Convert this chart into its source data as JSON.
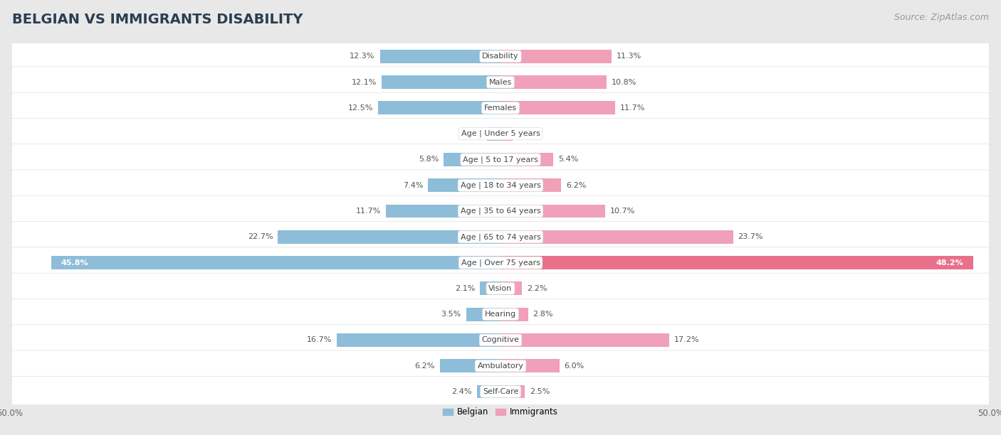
{
  "title": "BELGIAN VS IMMIGRANTS DISABILITY",
  "source": "Source: ZipAtlas.com",
  "categories": [
    "Disability",
    "Males",
    "Females",
    "Age | Under 5 years",
    "Age | 5 to 17 years",
    "Age | 18 to 34 years",
    "Age | 35 to 64 years",
    "Age | 65 to 74 years",
    "Age | Over 75 years",
    "Vision",
    "Hearing",
    "Cognitive",
    "Ambulatory",
    "Self-Care"
  ],
  "belgian": [
    12.3,
    12.1,
    12.5,
    1.4,
    5.8,
    7.4,
    11.7,
    22.7,
    45.8,
    2.1,
    3.5,
    16.7,
    6.2,
    2.4
  ],
  "immigrants": [
    11.3,
    10.8,
    11.7,
    1.2,
    5.4,
    6.2,
    10.7,
    23.7,
    48.2,
    2.2,
    2.8,
    17.2,
    6.0,
    2.5
  ],
  "belgian_color": "#8DBDD8",
  "immigrants_color": "#F0A0B8",
  "immigrants_color_large": "#E8708A",
  "axis_limit": 50.0,
  "bg_color": "#e8e8e8",
  "row_bg_color": "#f0f0f0",
  "row_bg_color_alt": "#e0e0e0",
  "legend_belgian": "Belgian",
  "legend_immigrants": "Immigrants",
  "title_fontsize": 14,
  "source_fontsize": 9,
  "label_fontsize": 8,
  "category_fontsize": 8,
  "tick_fontsize": 8.5,
  "bar_height": 0.52,
  "row_padding": 0.12
}
